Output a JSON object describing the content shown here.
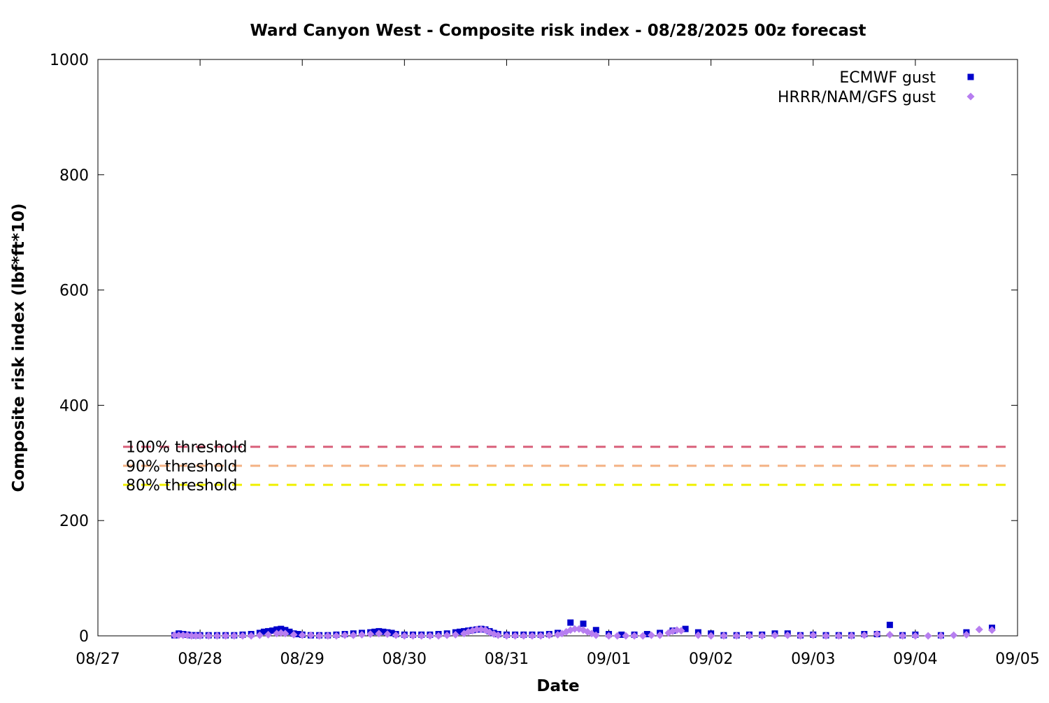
{
  "chart_data": {
    "type": "scatter",
    "title": "Ward Canyon West - Composite risk index - 08/28/2025 00z forecast",
    "xlabel": "Date",
    "ylabel": "Composite risk index (lbf*ft*10)",
    "x_unit": "days",
    "xlim": [
      "2025-08-27",
      "2025-09-05"
    ],
    "ylim": [
      0,
      1000
    ],
    "yticks": [
      0,
      200,
      400,
      600,
      800,
      1000
    ],
    "xticks": [
      {
        "date": "2025-08-27",
        "label": "08/27"
      },
      {
        "date": "2025-08-28",
        "label": "08/28"
      },
      {
        "date": "2025-08-29",
        "label": "08/29"
      },
      {
        "date": "2025-08-30",
        "label": "08/30"
      },
      {
        "date": "2025-08-31",
        "label": "08/31"
      },
      {
        "date": "2025-09-01",
        "label": "09/01"
      },
      {
        "date": "2025-09-02",
        "label": "09/02"
      },
      {
        "date": "2025-09-03",
        "label": "09/03"
      },
      {
        "date": "2025-09-04",
        "label": "09/04"
      },
      {
        "date": "2025-09-05",
        "label": "09/05"
      }
    ],
    "grid": false,
    "legend_position": "top-right",
    "thresholds": [
      {
        "label": "100% threshold",
        "value": 328,
        "color": "#d9607a"
      },
      {
        "label": "90% threshold",
        "value": 295,
        "color": "#f4b183"
      },
      {
        "label": "80% threshold",
        "value": 262,
        "color": "#f0f000"
      }
    ],
    "series": [
      {
        "name": "ECMWF gust",
        "marker": "square",
        "color": "#0000cc",
        "points": [
          [
            "2025-08-27 18:00",
            1
          ],
          [
            "2025-08-27 19:00",
            4
          ],
          [
            "2025-08-27 20:00",
            3
          ],
          [
            "2025-08-27 21:00",
            2
          ],
          [
            "2025-08-27 22:00",
            1
          ],
          [
            "2025-08-27 23:00",
            1
          ],
          [
            "2025-08-28 00:00",
            1
          ],
          [
            "2025-08-28 02:00",
            1
          ],
          [
            "2025-08-28 04:00",
            1
          ],
          [
            "2025-08-28 06:00",
            1
          ],
          [
            "2025-08-28 08:00",
            1
          ],
          [
            "2025-08-28 10:00",
            2
          ],
          [
            "2025-08-28 12:00",
            3
          ],
          [
            "2025-08-28 14:00",
            5
          ],
          [
            "2025-08-28 15:00",
            7
          ],
          [
            "2025-08-28 16:00",
            8
          ],
          [
            "2025-08-28 17:00",
            9
          ],
          [
            "2025-08-28 18:00",
            11
          ],
          [
            "2025-08-28 19:00",
            12
          ],
          [
            "2025-08-28 20:00",
            10
          ],
          [
            "2025-08-28 21:00",
            7
          ],
          [
            "2025-08-28 22:00",
            4
          ],
          [
            "2025-08-28 23:00",
            3
          ],
          [
            "2025-08-29 00:00",
            2
          ],
          [
            "2025-08-29 02:00",
            1
          ],
          [
            "2025-08-29 04:00",
            1
          ],
          [
            "2025-08-29 06:00",
            1
          ],
          [
            "2025-08-29 08:00",
            2
          ],
          [
            "2025-08-29 10:00",
            3
          ],
          [
            "2025-08-29 12:00",
            4
          ],
          [
            "2025-08-29 14:00",
            5
          ],
          [
            "2025-08-29 16:00",
            6
          ],
          [
            "2025-08-29 17:00",
            7
          ],
          [
            "2025-08-29 18:00",
            8
          ],
          [
            "2025-08-29 19:00",
            7
          ],
          [
            "2025-08-29 20:00",
            6
          ],
          [
            "2025-08-29 21:00",
            5
          ],
          [
            "2025-08-29 22:00",
            3
          ],
          [
            "2025-08-30 00:00",
            2
          ],
          [
            "2025-08-30 02:00",
            2
          ],
          [
            "2025-08-30 04:00",
            2
          ],
          [
            "2025-08-30 06:00",
            2
          ],
          [
            "2025-08-30 08:00",
            3
          ],
          [
            "2025-08-30 10:00",
            4
          ],
          [
            "2025-08-30 12:00",
            6
          ],
          [
            "2025-08-30 13:00",
            7
          ],
          [
            "2025-08-30 14:00",
            8
          ],
          [
            "2025-08-30 15:00",
            9
          ],
          [
            "2025-08-30 16:00",
            10
          ],
          [
            "2025-08-30 17:00",
            11
          ],
          [
            "2025-08-30 18:00",
            12
          ],
          [
            "2025-08-30 19:00",
            11
          ],
          [
            "2025-08-30 20:00",
            8
          ],
          [
            "2025-08-30 21:00",
            5
          ],
          [
            "2025-08-30 22:00",
            3
          ],
          [
            "2025-08-31 00:00",
            2
          ],
          [
            "2025-08-31 02:00",
            2
          ],
          [
            "2025-08-31 04:00",
            2
          ],
          [
            "2025-08-31 06:00",
            2
          ],
          [
            "2025-08-31 08:00",
            2
          ],
          [
            "2025-08-31 10:00",
            3
          ],
          [
            "2025-08-31 12:00",
            5
          ],
          [
            "2025-08-31 15:00",
            23
          ],
          [
            "2025-08-31 18:00",
            21
          ],
          [
            "2025-08-31 21:00",
            10
          ],
          [
            "2025-09-01 00:00",
            3
          ],
          [
            "2025-09-01 03:00",
            2
          ],
          [
            "2025-09-01 06:00",
            2
          ],
          [
            "2025-09-01 09:00",
            3
          ],
          [
            "2025-09-01 12:00",
            5
          ],
          [
            "2025-09-01 15:00",
            9
          ],
          [
            "2025-09-01 18:00",
            12
          ],
          [
            "2025-09-01 21:00",
            6
          ],
          [
            "2025-09-02 00:00",
            4
          ],
          [
            "2025-09-02 03:00",
            1
          ],
          [
            "2025-09-02 06:00",
            1
          ],
          [
            "2025-09-02 09:00",
            2
          ],
          [
            "2025-09-02 12:00",
            2
          ],
          [
            "2025-09-02 15:00",
            4
          ],
          [
            "2025-09-02 18:00",
            4
          ],
          [
            "2025-09-02 21:00",
            1
          ],
          [
            "2025-09-03 00:00",
            2
          ],
          [
            "2025-09-03 03:00",
            1
          ],
          [
            "2025-09-03 06:00",
            1
          ],
          [
            "2025-09-03 09:00",
            1
          ],
          [
            "2025-09-03 12:00",
            3
          ],
          [
            "2025-09-03 15:00",
            3
          ],
          [
            "2025-09-03 18:00",
            19
          ],
          [
            "2025-09-03 21:00",
            1
          ],
          [
            "2025-09-04 00:00",
            2
          ],
          [
            "2025-09-04 06:00",
            1
          ],
          [
            "2025-09-04 12:00",
            6
          ],
          [
            "2025-09-04 18:00",
            14
          ]
        ]
      },
      {
        "name": "HRRR/NAM/GFS gust",
        "marker": "diamond",
        "color": "#b77ef0",
        "points": [
          [
            "2025-08-27 18:00",
            1
          ],
          [
            "2025-08-27 19:00",
            1
          ],
          [
            "2025-08-27 20:00",
            1
          ],
          [
            "2025-08-27 21:00",
            1
          ],
          [
            "2025-08-27 22:00",
            0
          ],
          [
            "2025-08-27 23:00",
            0
          ],
          [
            "2025-08-28 00:00",
            0
          ],
          [
            "2025-08-28 02:00",
            0
          ],
          [
            "2025-08-28 04:00",
            0
          ],
          [
            "2025-08-28 06:00",
            0
          ],
          [
            "2025-08-28 08:00",
            0
          ],
          [
            "2025-08-28 10:00",
            0
          ],
          [
            "2025-08-28 12:00",
            0
          ],
          [
            "2025-08-28 14:00",
            1
          ],
          [
            "2025-08-28 16:00",
            2
          ],
          [
            "2025-08-28 18:00",
            4
          ],
          [
            "2025-08-28 19:00",
            5
          ],
          [
            "2025-08-28 20:00",
            4
          ],
          [
            "2025-08-28 22:00",
            2
          ],
          [
            "2025-08-29 00:00",
            1
          ],
          [
            "2025-08-29 02:00",
            1
          ],
          [
            "2025-08-29 04:00",
            0
          ],
          [
            "2025-08-29 06:00",
            0
          ],
          [
            "2025-08-29 08:00",
            0
          ],
          [
            "2025-08-29 10:00",
            1
          ],
          [
            "2025-08-29 12:00",
            1
          ],
          [
            "2025-08-29 14:00",
            2
          ],
          [
            "2025-08-29 16:00",
            3
          ],
          [
            "2025-08-29 18:00",
            4
          ],
          [
            "2025-08-29 20:00",
            3
          ],
          [
            "2025-08-29 22:00",
            1
          ],
          [
            "2025-08-30 00:00",
            0
          ],
          [
            "2025-08-30 02:00",
            0
          ],
          [
            "2025-08-30 04:00",
            0
          ],
          [
            "2025-08-30 06:00",
            0
          ],
          [
            "2025-08-30 08:00",
            0
          ],
          [
            "2025-08-30 10:00",
            1
          ],
          [
            "2025-08-30 12:00",
            2
          ],
          [
            "2025-08-30 14:00",
            4
          ],
          [
            "2025-08-30 15:00",
            7
          ],
          [
            "2025-08-30 16:00",
            9
          ],
          [
            "2025-08-30 17:00",
            11
          ],
          [
            "2025-08-30 18:00",
            11
          ],
          [
            "2025-08-30 19:00",
            10
          ],
          [
            "2025-08-30 20:00",
            6
          ],
          [
            "2025-08-30 21:00",
            3
          ],
          [
            "2025-08-30 22:00",
            1
          ],
          [
            "2025-08-31 00:00",
            0
          ],
          [
            "2025-08-31 02:00",
            0
          ],
          [
            "2025-08-31 04:00",
            0
          ],
          [
            "2025-08-31 06:00",
            0
          ],
          [
            "2025-08-31 08:00",
            0
          ],
          [
            "2025-08-31 10:00",
            1
          ],
          [
            "2025-08-31 12:00",
            2
          ],
          [
            "2025-08-31 13:00",
            4
          ],
          [
            "2025-08-31 14:00",
            7
          ],
          [
            "2025-08-31 15:00",
            10
          ],
          [
            "2025-08-31 16:00",
            12
          ],
          [
            "2025-08-31 17:00",
            12
          ],
          [
            "2025-08-31 18:00",
            10
          ],
          [
            "2025-08-31 19:00",
            7
          ],
          [
            "2025-08-31 20:00",
            4
          ],
          [
            "2025-08-31 21:00",
            1
          ],
          [
            "2025-09-01 00:00",
            0
          ],
          [
            "2025-09-01 02:00",
            0
          ],
          [
            "2025-09-01 04:00",
            0
          ],
          [
            "2025-09-01 06:00",
            0
          ],
          [
            "2025-09-01 08:00",
            0
          ],
          [
            "2025-09-01 10:00",
            1
          ],
          [
            "2025-09-01 12:00",
            1
          ],
          [
            "2025-09-01 14:00",
            5
          ],
          [
            "2025-09-01 15:00",
            8
          ],
          [
            "2025-09-01 16:00",
            10
          ],
          [
            "2025-09-01 17:00",
            9
          ],
          [
            "2025-09-01 21:00",
            1
          ],
          [
            "2025-09-02 00:00",
            0
          ],
          [
            "2025-09-02 03:00",
            0
          ],
          [
            "2025-09-02 06:00",
            0
          ],
          [
            "2025-09-02 09:00",
            0
          ],
          [
            "2025-09-02 12:00",
            0
          ],
          [
            "2025-09-02 15:00",
            1
          ],
          [
            "2025-09-02 18:00",
            1
          ],
          [
            "2025-09-02 21:00",
            0
          ],
          [
            "2025-09-03 00:00",
            1
          ],
          [
            "2025-09-03 03:00",
            0
          ],
          [
            "2025-09-03 06:00",
            0
          ],
          [
            "2025-09-03 09:00",
            0
          ],
          [
            "2025-09-03 12:00",
            1
          ],
          [
            "2025-09-03 15:00",
            3
          ],
          [
            "2025-09-03 18:00",
            2
          ],
          [
            "2025-09-03 21:00",
            0
          ],
          [
            "2025-09-04 00:00",
            0
          ],
          [
            "2025-09-04 03:00",
            0
          ],
          [
            "2025-09-04 06:00",
            0
          ],
          [
            "2025-09-04 09:00",
            1
          ],
          [
            "2025-09-04 12:00",
            2
          ],
          [
            "2025-09-04 15:00",
            11
          ],
          [
            "2025-09-04 18:00",
            10
          ]
        ]
      }
    ]
  }
}
